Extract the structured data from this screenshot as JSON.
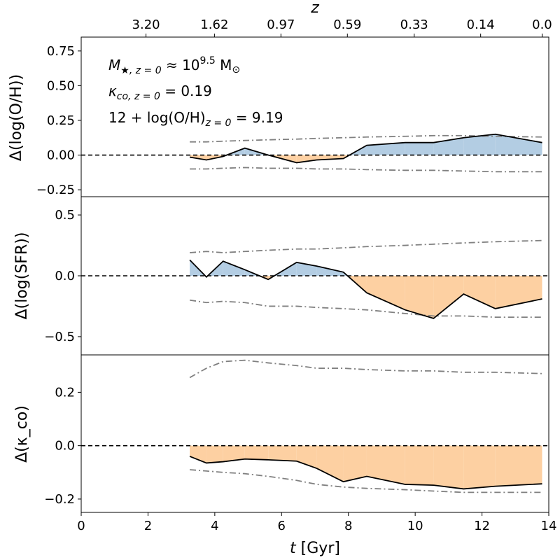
{
  "chart_data": {
    "type": "line",
    "layout": "3 stacked panels sharing x-axis",
    "xlabel_main": "t",
    "xlabel_unit": "[Gyr]",
    "xlim": [
      0,
      14
    ],
    "x_ticks": [
      0,
      2,
      4,
      6,
      8,
      10,
      12,
      14
    ],
    "x_tick_labels": [
      "0",
      "2",
      "4",
      "6",
      "8",
      "10",
      "12",
      "14"
    ],
    "top_axis": {
      "label": "z",
      "ticks": [
        {
          "t": 1.94,
          "label": "3.20"
        },
        {
          "t": 3.99,
          "label": "1.62"
        },
        {
          "t": 5.98,
          "label": "0.97"
        },
        {
          "t": 7.97,
          "label": "0.59"
        },
        {
          "t": 9.97,
          "label": "0.33"
        },
        {
          "t": 11.96,
          "label": "0.14"
        },
        {
          "t": 13.8,
          "label": "0.0"
        }
      ]
    },
    "annotations": {
      "mass": {
        "prefix": "M",
        "sub": "★, z = 0",
        "approx": " ≈ 10",
        "exp": "9.5",
        "unit": " M",
        "sun": "⊙"
      },
      "kappa": {
        "prefix": "κ",
        "sub": "co, z = 0",
        "value": " = 0.19"
      },
      "metallicity": {
        "prefix": "12 + log(O/H)",
        "sub": "z = 0",
        "value": " = 9.19"
      }
    },
    "t": [
      3.25,
      3.75,
      4.25,
      4.9,
      5.6,
      6.45,
      7.05,
      7.85,
      8.55,
      9.7,
      10.55,
      11.45,
      12.4,
      13.8
    ],
    "panels": [
      {
        "name": "OH",
        "ylabel": "Δ(log(O/H))",
        "ylim": [
          -0.3,
          0.85
        ],
        "yticks": [
          -0.25,
          0,
          0.25,
          0.5,
          0.75
        ],
        "ytick_labels": [
          "−0.25",
          "0.00",
          "0.25",
          "0.50",
          "0.75"
        ],
        "values": [
          -0.015,
          -0.035,
          -0.01,
          0.05,
          0.0,
          -0.055,
          -0.035,
          -0.025,
          0.07,
          0.09,
          0.09,
          0.125,
          0.15,
          0.09
        ],
        "upper": [
          0.095,
          0.095,
          0.1,
          0.105,
          0.11,
          0.115,
          0.12,
          0.125,
          0.13,
          0.135,
          0.14,
          0.14,
          0.135,
          0.13
        ],
        "lower": [
          -0.1,
          -0.1,
          -0.095,
          -0.09,
          -0.095,
          -0.095,
          -0.1,
          -0.1,
          -0.105,
          -0.11,
          -0.11,
          -0.115,
          -0.12,
          -0.12
        ]
      },
      {
        "name": "SFR",
        "ylabel": "Δ(log(SFR))",
        "ylim": [
          -0.65,
          0.65
        ],
        "yticks": [
          -0.5,
          0,
          0.5
        ],
        "ytick_labels": [
          "−0.5",
          "0.0",
          "0.5"
        ],
        "values": [
          0.13,
          -0.01,
          0.12,
          0.05,
          -0.03,
          0.11,
          0.08,
          0.03,
          -0.14,
          -0.28,
          -0.35,
          -0.15,
          -0.27,
          -0.19
        ],
        "upper": [
          0.19,
          0.2,
          0.19,
          0.2,
          0.21,
          0.22,
          0.22,
          0.23,
          0.24,
          0.25,
          0.26,
          0.27,
          0.28,
          0.29
        ],
        "lower": [
          -0.2,
          -0.22,
          -0.21,
          -0.22,
          -0.25,
          -0.25,
          -0.26,
          -0.27,
          -0.28,
          -0.31,
          -0.33,
          -0.33,
          -0.34,
          -0.34
        ]
      },
      {
        "name": "kappa",
        "ylabel": "Δ(κ_co)",
        "ylim": [
          -0.25,
          0.34
        ],
        "yticks": [
          -0.2,
          0,
          0.2
        ],
        "ytick_labels": [
          "−0.2",
          "0.0",
          "0.2"
        ],
        "values": [
          -0.04,
          -0.065,
          -0.06,
          -0.05,
          -0.053,
          -0.058,
          -0.085,
          -0.135,
          -0.115,
          -0.145,
          -0.148,
          -0.162,
          -0.152,
          -0.143
        ],
        "upper": [
          0.255,
          0.29,
          0.315,
          0.32,
          0.31,
          0.3,
          0.29,
          0.29,
          0.285,
          0.28,
          0.28,
          0.275,
          0.275,
          0.27
        ],
        "lower": [
          -0.09,
          -0.095,
          -0.1,
          -0.105,
          -0.115,
          -0.13,
          -0.145,
          -0.155,
          -0.16,
          -0.165,
          -0.17,
          -0.175,
          -0.175,
          -0.175
        ]
      }
    ],
    "colors": {
      "positive": "#b3cde3",
      "negative": "#fdd0a2",
      "line": "#000000",
      "envelope": "#808080",
      "zero": "#000000"
    }
  }
}
